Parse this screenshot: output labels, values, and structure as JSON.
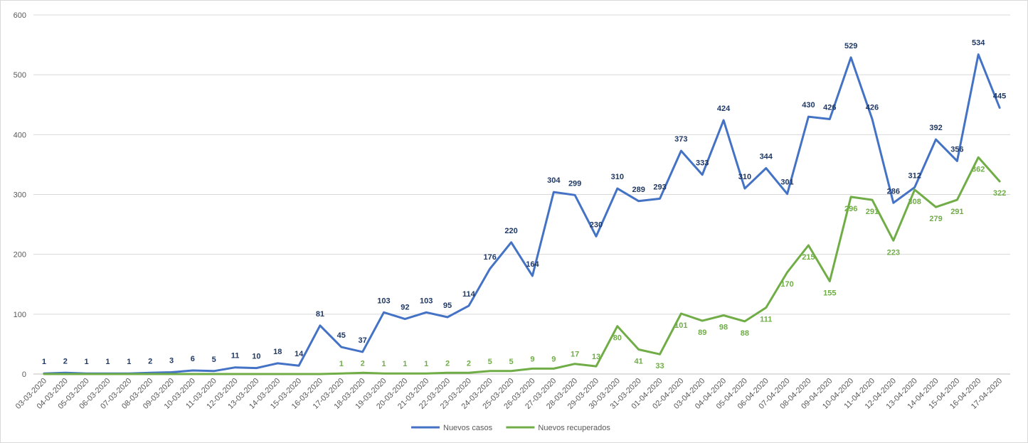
{
  "chart_data": {
    "type": "line",
    "title": "",
    "xlabel": "",
    "ylabel": "",
    "ylim": [
      0,
      600
    ],
    "yticks": [
      0,
      100,
      200,
      300,
      400,
      500,
      600
    ],
    "grid": true,
    "legend_position": "bottom",
    "categories": [
      "03-03-2020",
      "04-03-2020",
      "05-03-2020",
      "06-03-2020",
      "07-03-2020",
      "08-03-2020",
      "09-03-2020",
      "10-03-2020",
      "11-03-2020",
      "12-03-2020",
      "13-03-2020",
      "14-03-2020",
      "15-03-2020",
      "16-03-2020",
      "17-03-2020",
      "18-03-2020",
      "19-03-2020",
      "20-03-2020",
      "21-03-2020",
      "22-03-2020",
      "23-03-2020",
      "24-03-2020",
      "25-03-2020",
      "26-03-2020",
      "27-03-2020",
      "28-03-2020",
      "29-03-2020",
      "30-03-2020",
      "31-03-2020",
      "01-04-2020",
      "02-04-2020",
      "03-04-2020",
      "04-04-2020",
      "05-04-2020",
      "06-04-2020",
      "07-04-2020",
      "08-04-2020",
      "09-04-2020",
      "10-04-2020",
      "11-04-2020",
      "12-04-2020",
      "13-04-2020",
      "14-04-2020",
      "15-04-2020",
      "16-04-2020",
      "17-04-2020"
    ],
    "series": [
      {
        "name": "Nuevos casos",
        "color": "#4472c4",
        "label_color": "#1f3864",
        "values": [
          1,
          2,
          1,
          1,
          1,
          2,
          3,
          6,
          5,
          11,
          10,
          18,
          14,
          81,
          45,
          37,
          103,
          92,
          103,
          95,
          114,
          176,
          220,
          164,
          304,
          299,
          230,
          310,
          289,
          293,
          373,
          333,
          424,
          310,
          344,
          301,
          430,
          426,
          529,
          426,
          286,
          312,
          392,
          356,
          534,
          445
        ],
        "labels": [
          "1",
          "2",
          "1",
          "1",
          "1",
          "2",
          "3",
          "6",
          "5",
          "11",
          "10",
          "18",
          "14",
          "81",
          "45",
          "37",
          "103",
          "92",
          "103",
          "95",
          "114",
          "176",
          "220",
          "164",
          "304",
          "299",
          "230",
          "310",
          "289",
          "293",
          "373",
          "333",
          "424",
          "310",
          "344",
          "301",
          "430",
          "426",
          "529",
          "426",
          "286",
          "312",
          "392",
          "356",
          "534",
          "445"
        ]
      },
      {
        "name": "Nuevos recuperados",
        "color": "#70ad47",
        "label_color": "#70ad47",
        "values": [
          0,
          0,
          0,
          0,
          0,
          0,
          0,
          0,
          0,
          0,
          0,
          0,
          0,
          0,
          1,
          2,
          1,
          1,
          1,
          2,
          2,
          5,
          5,
          9,
          9,
          17,
          13,
          80,
          41,
          33,
          101,
          89,
          98,
          88,
          111,
          170,
          215,
          155,
          296,
          291,
          223,
          308,
          279,
          291,
          362,
          322
        ],
        "labels": [
          "",
          "",
          "",
          "",
          "",
          "",
          "",
          "",
          "",
          "",
          "",
          "",
          "",
          "",
          "1",
          "2",
          "1",
          "1",
          "1",
          "2",
          "2",
          "5",
          "5",
          "9",
          "9",
          "17",
          "13",
          "80",
          "41",
          "33",
          "101",
          "89",
          "98",
          "88",
          "111",
          "170",
          "215",
          "155",
          "296",
          "291",
          "223",
          "308",
          "279",
          "291",
          "362",
          "322"
        ]
      }
    ]
  }
}
